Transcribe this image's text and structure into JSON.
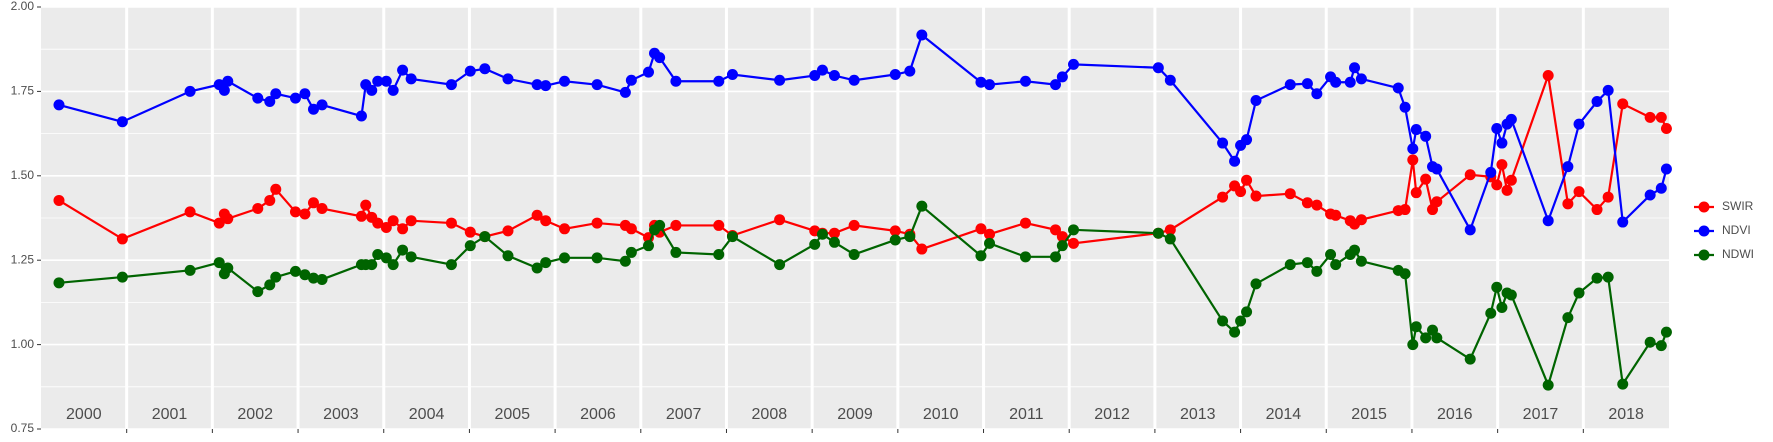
{
  "chart_data": {
    "type": "line",
    "x": [
      2000.21,
      2000.95,
      2001.74,
      2002.08,
      2002.14,
      2002.18,
      2002.53,
      2002.67,
      2002.74,
      2002.97,
      2003.08,
      2003.18,
      2003.28,
      2003.74,
      2003.79,
      2003.86,
      2003.93,
      2004.03,
      2004.11,
      2004.22,
      2004.32,
      2004.79,
      2005.01,
      2005.18,
      2005.45,
      2005.79,
      2005.89,
      2006.11,
      2006.49,
      2006.82,
      2006.89,
      2007.09,
      2007.16,
      2007.22,
      2007.41,
      2007.91,
      2008.07,
      2008.62,
      2009.03,
      2009.12,
      2009.26,
      2009.49,
      2009.97,
      2010.14,
      2010.28,
      2010.97,
      2011.07,
      2011.49,
      2011.84,
      2011.92,
      2012.05,
      2013.04,
      2013.18,
      2013.79,
      2013.93,
      2014.0,
      2014.07,
      2014.18,
      2014.58,
      2014.78,
      2014.89,
      2015.05,
      2015.11,
      2015.28,
      2015.33,
      2015.41,
      2015.84,
      2015.92,
      2016.01,
      2016.05,
      2016.16,
      2016.24,
      2016.29,
      2016.68,
      2016.92,
      2016.99,
      2017.05,
      2017.11,
      2017.16,
      2017.59,
      2017.82,
      2017.95,
      2018.16,
      2018.29,
      2018.46,
      2018.78,
      2018.91,
      2018.97
    ],
    "series": [
      {
        "name": "SWIR",
        "color": "#ff0000",
        "values": [
          1.427,
          1.313,
          1.393,
          1.36,
          1.387,
          1.373,
          1.403,
          1.427,
          1.46,
          1.393,
          1.387,
          1.42,
          1.403,
          1.38,
          1.413,
          1.377,
          1.36,
          1.347,
          1.367,
          1.343,
          1.367,
          1.36,
          1.333,
          1.32,
          1.337,
          1.383,
          1.367,
          1.343,
          1.36,
          1.353,
          1.343,
          1.317,
          1.353,
          1.333,
          1.353,
          1.353,
          1.323,
          1.37,
          1.337,
          1.33,
          1.33,
          1.353,
          1.337,
          1.327,
          1.283,
          1.343,
          1.327,
          1.36,
          1.34,
          1.32,
          1.3,
          1.33,
          1.34,
          1.437,
          1.47,
          1.453,
          1.487,
          1.44,
          1.447,
          1.42,
          1.413,
          1.387,
          1.383,
          1.367,
          1.357,
          1.37,
          1.397,
          1.4,
          1.547,
          1.45,
          1.49,
          1.4,
          1.423,
          1.503,
          1.497,
          1.473,
          1.533,
          1.457,
          1.487,
          1.797,
          1.417,
          1.453,
          1.4,
          1.437,
          1.713,
          1.673,
          1.673,
          1.64
        ]
      },
      {
        "name": "NDVI",
        "color": "#0000ff",
        "values": [
          1.71,
          1.66,
          1.75,
          1.77,
          1.753,
          1.78,
          1.73,
          1.72,
          1.743,
          1.73,
          1.743,
          1.697,
          1.71,
          1.677,
          1.77,
          1.753,
          1.78,
          1.78,
          1.753,
          1.813,
          1.787,
          1.77,
          1.81,
          1.817,
          1.787,
          1.77,
          1.767,
          1.78,
          1.77,
          1.747,
          1.783,
          1.807,
          1.863,
          1.85,
          1.78,
          1.78,
          1.8,
          1.783,
          1.797,
          1.813,
          1.797,
          1.783,
          1.8,
          1.81,
          1.917,
          1.777,
          1.77,
          1.78,
          1.77,
          1.793,
          1.83,
          1.82,
          1.783,
          1.597,
          1.543,
          1.59,
          1.607,
          1.723,
          1.77,
          1.773,
          1.743,
          1.793,
          1.777,
          1.777,
          1.82,
          1.787,
          1.76,
          1.703,
          1.58,
          1.637,
          1.617,
          1.527,
          1.52,
          1.34,
          1.51,
          1.64,
          1.597,
          1.653,
          1.667,
          1.367,
          1.527,
          1.653,
          1.72,
          1.753,
          1.363,
          1.443,
          1.463,
          1.52
        ]
      },
      {
        "name": "NDWI",
        "color": "#006400",
        "values": [
          1.183,
          1.2,
          1.22,
          1.243,
          1.21,
          1.227,
          1.157,
          1.177,
          1.2,
          1.217,
          1.207,
          1.197,
          1.193,
          1.237,
          1.237,
          1.237,
          1.267,
          1.257,
          1.237,
          1.28,
          1.26,
          1.237,
          1.293,
          1.32,
          1.263,
          1.227,
          1.243,
          1.257,
          1.257,
          1.247,
          1.273,
          1.293,
          1.34,
          1.353,
          1.273,
          1.267,
          1.32,
          1.237,
          1.297,
          1.327,
          1.303,
          1.267,
          1.31,
          1.32,
          1.41,
          1.263,
          1.3,
          1.26,
          1.26,
          1.293,
          1.34,
          1.33,
          1.313,
          1.07,
          1.037,
          1.07,
          1.097,
          1.18,
          1.237,
          1.243,
          1.217,
          1.267,
          1.237,
          1.267,
          1.28,
          1.247,
          1.22,
          1.21,
          1.0,
          1.053,
          1.02,
          1.043,
          1.02,
          0.957,
          1.093,
          1.17,
          1.11,
          1.153,
          1.147,
          0.88,
          1.08,
          1.153,
          1.197,
          1.2,
          0.883,
          1.007,
          0.997,
          1.037
        ]
      }
    ],
    "xlim": [
      2000,
      2019
    ],
    "xticks": [
      2001,
      2002,
      2003,
      2004,
      2005,
      2006,
      2007,
      2008,
      2009,
      2010,
      2011,
      2012,
      2013,
      2014,
      2015,
      2016,
      2017,
      2018
    ],
    "year_labels": [
      2000,
      2001,
      2002,
      2003,
      2004,
      2005,
      2006,
      2007,
      2008,
      2009,
      2010,
      2011,
      2012,
      2013,
      2014,
      2015,
      2016,
      2017,
      2018
    ],
    "ylim": [
      0.75,
      2.0
    ],
    "yticks": [
      {
        "value": 0.75,
        "label": "0.75"
      },
      {
        "value": 1.0,
        "label": "1.00"
      },
      {
        "value": 1.25,
        "label": "1.25"
      },
      {
        "value": 1.5,
        "label": "1.50"
      },
      {
        "value": 1.75,
        "label": "1.75"
      },
      {
        "value": 2.0,
        "label": "2.00"
      }
    ],
    "grid": true,
    "legend": "right"
  }
}
